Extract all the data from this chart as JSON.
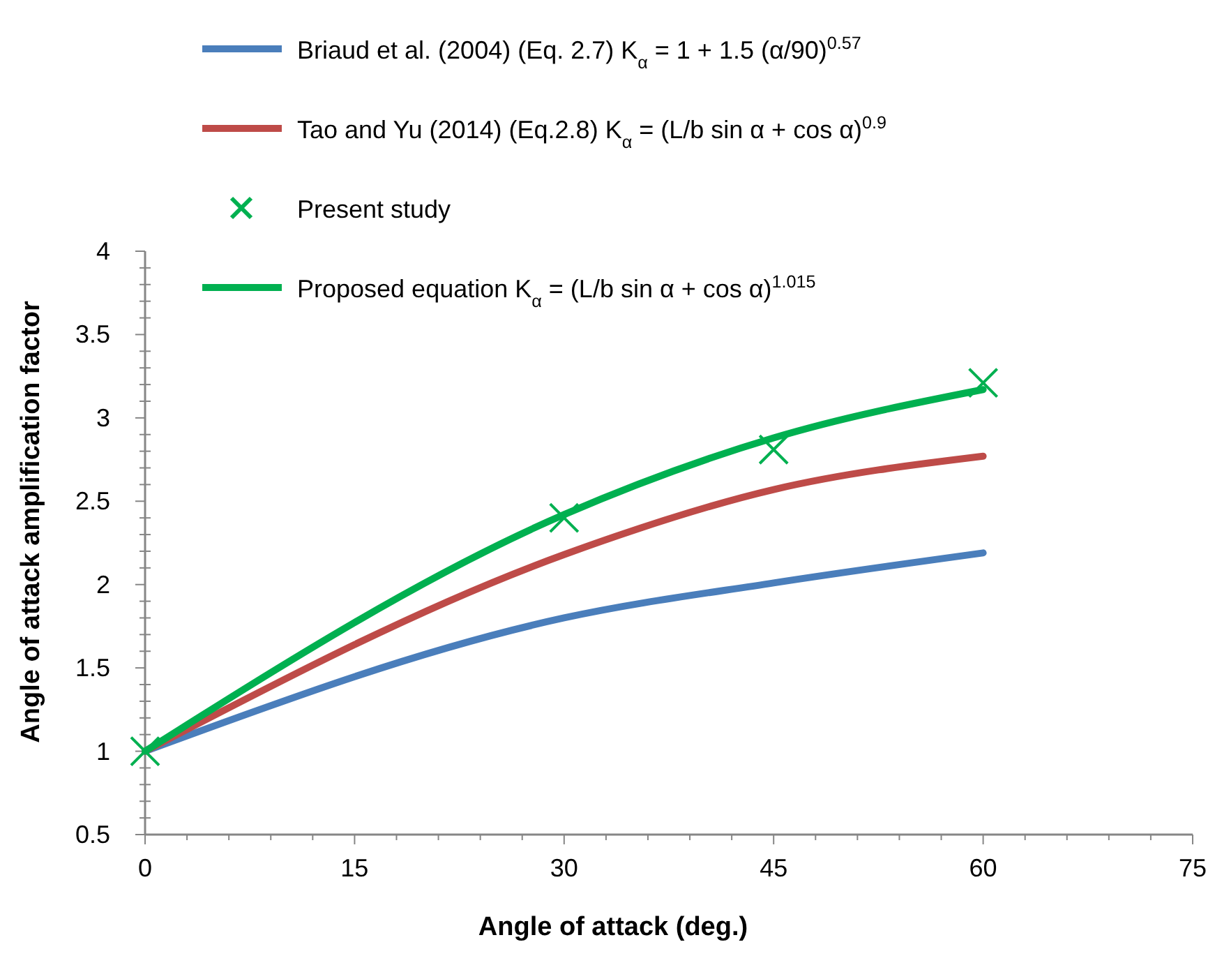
{
  "chart_data": {
    "type": "line",
    "xlabel": "Angle of attack (deg.)",
    "ylabel": "Angle of attack amplification factor",
    "xlim": [
      0,
      75
    ],
    "xticks": [
      0,
      15,
      30,
      45,
      60,
      75
    ],
    "ylim": [
      0.5,
      4
    ],
    "yticks": [
      0.5,
      1,
      1.5,
      2,
      2.5,
      3,
      3.5,
      4
    ],
    "legend": "top",
    "grid": false,
    "series": [
      {
        "name": "Briaud et al. (2004) (Eq. 2.7) K$_{α}$ = 1 + 1.5 (α/90)$^{0.57}$",
        "color": "#4a7ebb",
        "x": [
          0,
          30,
          45,
          60
        ],
        "values": [
          1,
          1.8,
          2.01,
          2.19
        ],
        "marker": "none"
      },
      {
        "name": "Tao and Yu (2014) (Eq.2.8) K$_{α}$ = (L/b sin α + cos α)$^{0.9}$",
        "color": "#be4b48",
        "x": [
          0,
          30,
          45,
          60
        ],
        "values": [
          1,
          2.18,
          2.57,
          2.77
        ],
        "marker": "none"
      },
      {
        "name": "Present study",
        "type": "scatter",
        "color": "#00b050",
        "x": [
          0,
          30,
          45,
          60
        ],
        "values": [
          1,
          2.4,
          2.81,
          3.21
        ],
        "marker": "cross"
      },
      {
        "name": "Proposed equation K$_{α}$ = (L/b sin α + cos α)$^{1.015}$",
        "color": "#00b050",
        "x": [
          0,
          30,
          45,
          60
        ],
        "values": [
          1,
          2.42,
          2.88,
          3.17
        ],
        "marker": "none"
      }
    ]
  }
}
